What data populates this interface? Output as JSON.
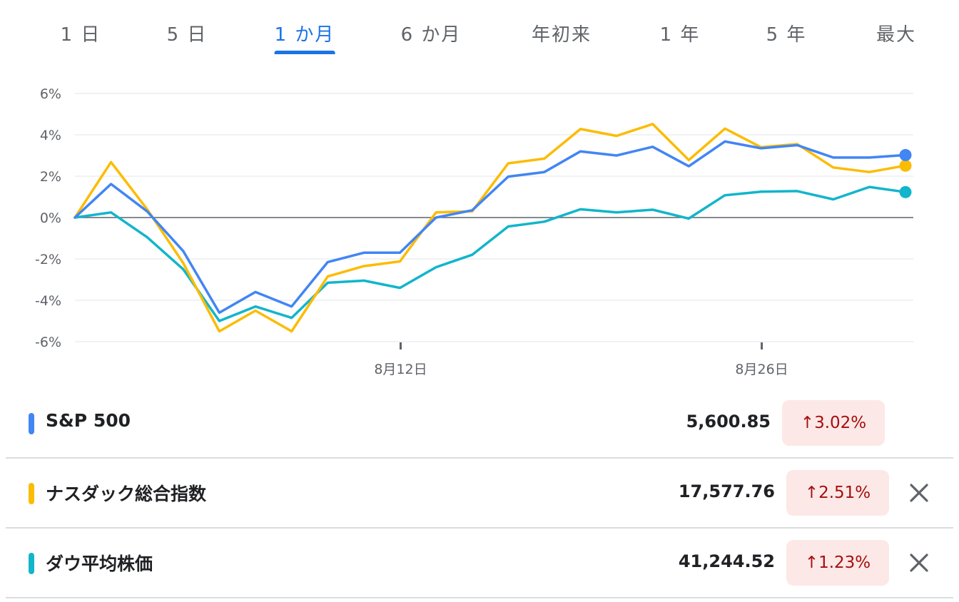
{
  "tabs": {
    "items": [
      "1 日",
      "5 日",
      "1 か月",
      "6 か月",
      "年初来",
      "1 年",
      "5 年",
      "最大"
    ],
    "active_index": 2
  },
  "chart_data": {
    "type": "line",
    "y_tick_labels": [
      "6%",
      "4%",
      "2%",
      "0%",
      "-2%",
      "-4%",
      "-6%"
    ],
    "ylim": [
      -6,
      6
    ],
    "x_tick_labels": [
      {
        "label": "8月12日",
        "index": 9
      },
      {
        "label": "8月26日",
        "index": 19
      }
    ],
    "grid": true,
    "series": [
      {
        "name": "S&P 500",
        "color": "#4285f4",
        "values": [
          0,
          1.62,
          0.3,
          -1.62,
          -4.6,
          -3.6,
          -4.3,
          -2.15,
          -1.7,
          -1.7,
          0,
          0.35,
          1.98,
          2.2,
          3.2,
          3.0,
          3.42,
          2.48,
          3.68,
          3.35,
          3.5,
          2.9,
          2.9,
          3.02
        ]
      },
      {
        "name": "ナスダック総合指数",
        "color": "#fbbc04",
        "values": [
          0,
          2.68,
          0.4,
          -2.2,
          -5.5,
          -4.5,
          -5.5,
          -2.85,
          -2.35,
          -2.12,
          0.25,
          0.3,
          2.62,
          2.85,
          4.28,
          3.95,
          4.52,
          2.78,
          4.3,
          3.4,
          3.55,
          2.42,
          2.2,
          2.51
        ]
      },
      {
        "name": "ダウ平均株価",
        "color": "#12b5cb",
        "values": [
          0,
          0.25,
          -0.95,
          -2.5,
          -5.0,
          -4.3,
          -4.85,
          -3.15,
          -3.05,
          -3.4,
          -2.4,
          -1.8,
          -0.43,
          -0.2,
          0.4,
          0.25,
          0.38,
          -0.05,
          1.08,
          1.25,
          1.28,
          0.88,
          1.48,
          1.23
        ]
      }
    ]
  },
  "indices": [
    {
      "name": "S&P 500",
      "price": "5,600.85",
      "change": "↑3.02%",
      "color": "#4285f4",
      "removable": false
    },
    {
      "name": "ナスダック総合指数",
      "price": "17,577.76",
      "change": "↑2.51%",
      "color": "#fbbc04",
      "removable": true
    },
    {
      "name": "ダウ平均株価",
      "price": "41,244.52",
      "change": "↑1.23%",
      "color": "#12b5cb",
      "removable": true
    }
  ]
}
